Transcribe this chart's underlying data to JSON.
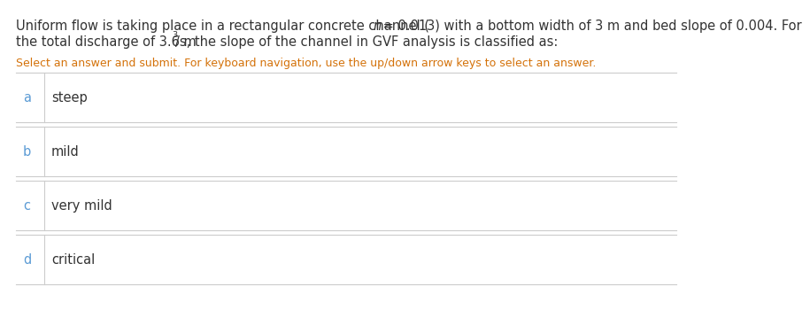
{
  "line1_pre": "Uniform flow is taking place in a rectangular concrete channel (",
  "line1_italic": "n",
  "line1_post": " = 0.013) with a bottom width of 3 m and bed slope of 0.004. For",
  "line2_pre": "the total discharge of 3.6 m",
  "line2_super": "3",
  "line2_post": "/s, the slope of the channel in GVF analysis is classified as:",
  "subtitle": "Select an answer and submit. For keyboard navigation, use the up/down arrow keys to select an answer.",
  "subtitle_color": "#d4720a",
  "title_color": "#333333",
  "options": [
    {
      "label": "a",
      "text": "steep"
    },
    {
      "label": "b",
      "text": "mild"
    },
    {
      "label": "c",
      "text": "very mild"
    },
    {
      "label": "d",
      "text": "critical"
    }
  ],
  "label_color": "#5b9bd5",
  "text_color": "#5b9bd5",
  "option_text_color": "#333333",
  "background_color": "#ffffff",
  "line_color": "#cccccc",
  "font_size_title": 10.5,
  "font_size_subtitle": 9.0,
  "font_size_options": 10.5
}
